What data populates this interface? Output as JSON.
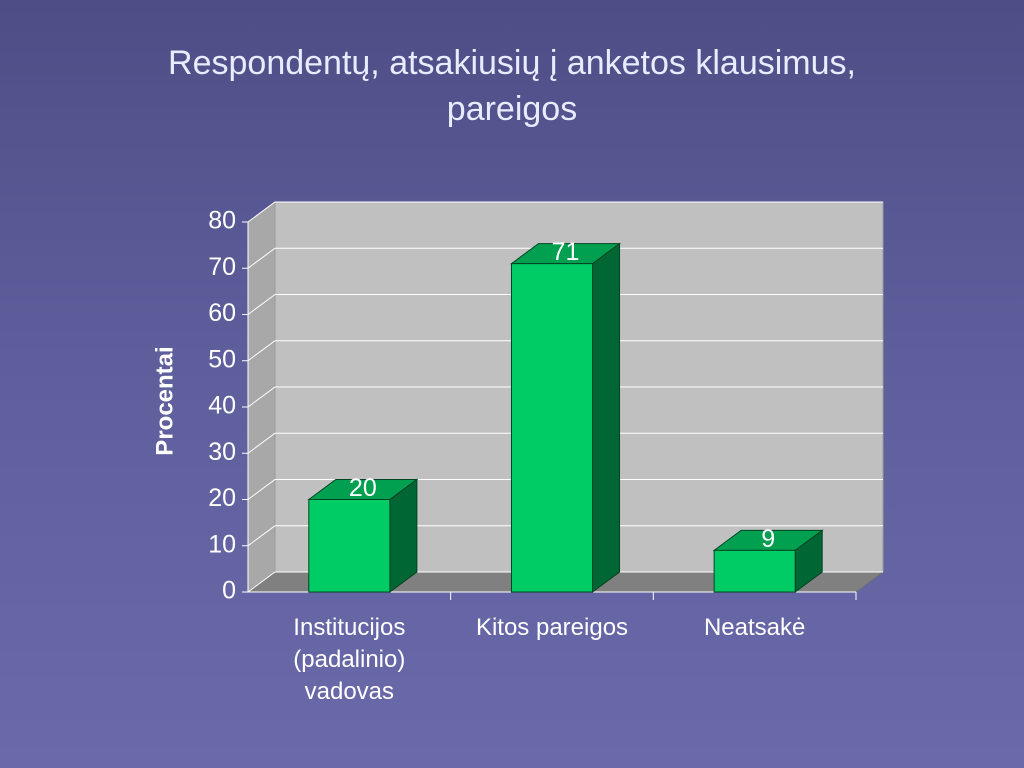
{
  "chart_data": {
    "type": "bar3d",
    "title": "Respondentų, atsakiusių į anketos klausimus, pareigos",
    "y_label": "Procentai",
    "categories": [
      "Institucijos (padalinio) vadovas",
      "Kitos pareigos",
      "Neatsakė"
    ],
    "values": [
      20,
      71,
      9
    ],
    "color": "#00cc66",
    "ylim": [
      0,
      80
    ],
    "yticks": [
      0,
      10,
      20,
      30,
      40,
      50,
      60,
      70,
      80
    ],
    "grid": true
  }
}
